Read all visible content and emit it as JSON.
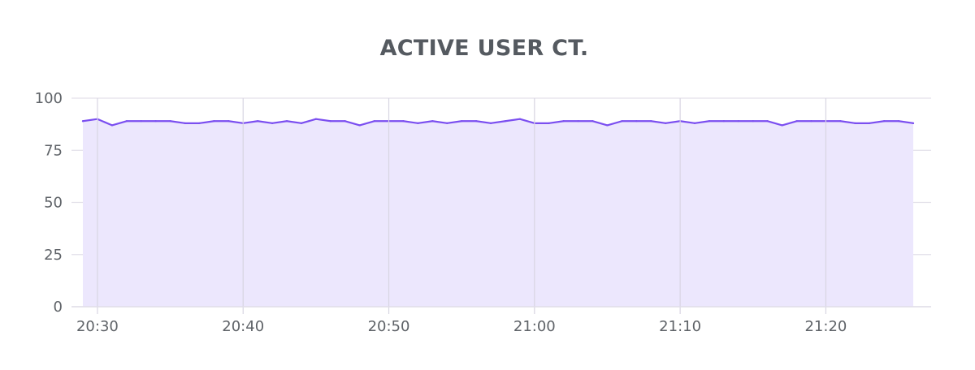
{
  "chart_data": {
    "type": "area",
    "title": "ACTIVE USER CT.",
    "xlabel": "",
    "ylabel": "",
    "ylim": [
      0,
      100
    ],
    "y_ticks": [
      0,
      25,
      50,
      75,
      100
    ],
    "x_range": [
      "20:29",
      "21:26"
    ],
    "x_ticks": [
      "20:30",
      "20:40",
      "20:50",
      "21:00",
      "21:10",
      "21:20"
    ],
    "grid": true,
    "legend": "none",
    "colors": {
      "line": "#7b4ff0",
      "fill": "#ece7fd",
      "grid": "#e3e1ea",
      "vgrid": "#d8d5e2"
    },
    "x": [
      "20:29",
      "20:30",
      "20:31",
      "20:32",
      "20:33",
      "20:34",
      "20:35",
      "20:36",
      "20:37",
      "20:38",
      "20:39",
      "20:40",
      "20:41",
      "20:42",
      "20:43",
      "20:44",
      "20:45",
      "20:46",
      "20:47",
      "20:48",
      "20:49",
      "20:50",
      "20:51",
      "20:52",
      "20:53",
      "20:54",
      "20:55",
      "20:56",
      "20:57",
      "20:58",
      "20:59",
      "21:00",
      "21:01",
      "21:02",
      "21:03",
      "21:04",
      "21:05",
      "21:06",
      "21:07",
      "21:08",
      "21:09",
      "21:10",
      "21:11",
      "21:12",
      "21:13",
      "21:14",
      "21:15",
      "21:16",
      "21:17",
      "21:18",
      "21:19",
      "21:20",
      "21:21",
      "21:22",
      "21:23",
      "21:24",
      "21:25",
      "21:26"
    ],
    "values": [
      89,
      90,
      87,
      89,
      89,
      89,
      89,
      88,
      88,
      89,
      89,
      88,
      89,
      88,
      89,
      88,
      90,
      89,
      89,
      87,
      89,
      89,
      89,
      88,
      89,
      88,
      89,
      89,
      88,
      89,
      90,
      88,
      88,
      89,
      89,
      89,
      87,
      89,
      89,
      89,
      88,
      89,
      88,
      89,
      89,
      89,
      89,
      89,
      87,
      89,
      89,
      89,
      89,
      88,
      88,
      89,
      89,
      88
    ]
  }
}
